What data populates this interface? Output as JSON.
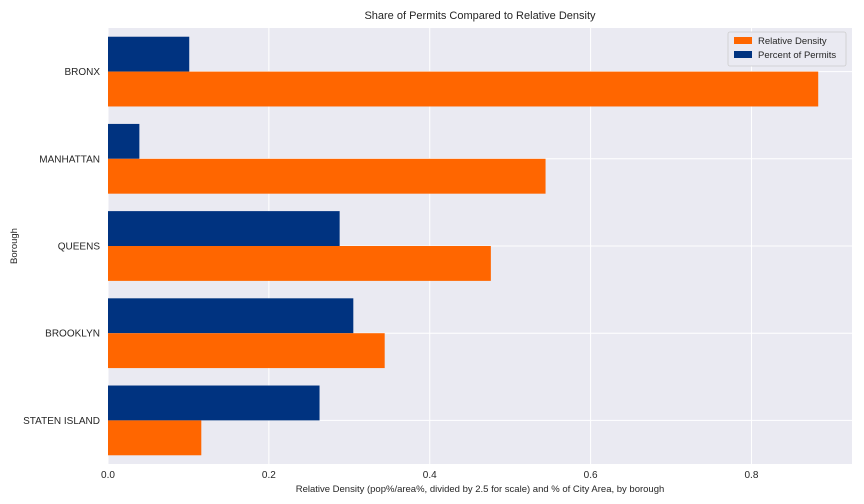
{
  "chart_data": {
    "type": "bar",
    "orientation": "horizontal",
    "title": "Share of Permits Compared to Relative Density",
    "xlabel": "Relative Density (pop%/area%, divided by 2.5 for scale) and % of City Area, by borough",
    "ylabel": "Borough",
    "categories": [
      "BRONX",
      "MANHATTAN",
      "QUEENS",
      "BROOKLYN",
      "STATEN ISLAND"
    ],
    "series": [
      {
        "name": "Relative Density",
        "color": "#ff6600",
        "values": [
          0.883,
          0.544,
          0.476,
          0.344,
          0.116
        ]
      },
      {
        "name": "Percent of Permits",
        "color": "#003380",
        "values": [
          0.101,
          0.039,
          0.288,
          0.305,
          0.263
        ]
      }
    ],
    "xlim": [
      0,
      0.925
    ],
    "xticks": [
      0.0,
      0.2,
      0.4,
      0.6,
      0.8
    ],
    "xtick_labels": [
      "0.0",
      "0.2",
      "0.4",
      "0.6",
      "0.8"
    ],
    "grid": true,
    "legend_position": "top-right"
  }
}
